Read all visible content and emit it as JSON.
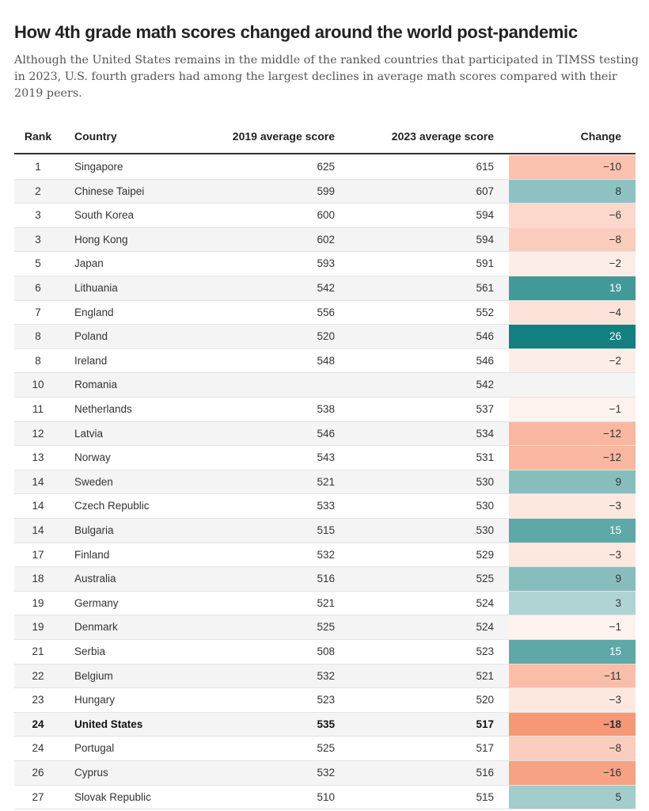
{
  "title": "How 4th grade math scores changed around the world post-pandemic",
  "subtitle": "Although the United States remains in the middle of the ranked countries that participated in TIMSS testing in 2023, U.S. fourth graders had among the largest declines in average math scores compared with their 2019 peers.",
  "colors": {
    "positive": "#137f7e",
    "negative": "#f4855e",
    "neutral": "#ffffff"
  },
  "chart_data": {
    "type": "table",
    "columns": [
      "Rank",
      "Country",
      "2019 average score",
      "2023 average score",
      "Change"
    ],
    "highlight_row": "United States",
    "rows": [
      {
        "rank": "1",
        "country": "Singapore",
        "score_2019": "625",
        "score_2023": "615",
        "change": "−10"
      },
      {
        "rank": "2",
        "country": "Chinese Taipei",
        "score_2019": "599",
        "score_2023": "607",
        "change": "8"
      },
      {
        "rank": "3",
        "country": "South Korea",
        "score_2019": "600",
        "score_2023": "594",
        "change": "−6"
      },
      {
        "rank": "3",
        "country": "Hong Kong",
        "score_2019": "602",
        "score_2023": "594",
        "change": "−8"
      },
      {
        "rank": "5",
        "country": "Japan",
        "score_2019": "593",
        "score_2023": "591",
        "change": "−2"
      },
      {
        "rank": "6",
        "country": "Lithuania",
        "score_2019": "542",
        "score_2023": "561",
        "change": "19"
      },
      {
        "rank": "7",
        "country": "England",
        "score_2019": "556",
        "score_2023": "552",
        "change": "−4"
      },
      {
        "rank": "8",
        "country": "Poland",
        "score_2019": "520",
        "score_2023": "546",
        "change": "26"
      },
      {
        "rank": "8",
        "country": "Ireland",
        "score_2019": "548",
        "score_2023": "546",
        "change": "−2"
      },
      {
        "rank": "10",
        "country": "Romania",
        "score_2019": "",
        "score_2023": "542",
        "change": ""
      },
      {
        "rank": "11",
        "country": "Netherlands",
        "score_2019": "538",
        "score_2023": "537",
        "change": "−1"
      },
      {
        "rank": "12",
        "country": "Latvia",
        "score_2019": "546",
        "score_2023": "534",
        "change": "−12"
      },
      {
        "rank": "13",
        "country": "Norway",
        "score_2019": "543",
        "score_2023": "531",
        "change": "−12"
      },
      {
        "rank": "14",
        "country": "Sweden",
        "score_2019": "521",
        "score_2023": "530",
        "change": "9"
      },
      {
        "rank": "14",
        "country": "Czech Republic",
        "score_2019": "533",
        "score_2023": "530",
        "change": "−3"
      },
      {
        "rank": "14",
        "country": "Bulgaria",
        "score_2019": "515",
        "score_2023": "530",
        "change": "15"
      },
      {
        "rank": "17",
        "country": "Finland",
        "score_2019": "532",
        "score_2023": "529",
        "change": "−3"
      },
      {
        "rank": "18",
        "country": "Australia",
        "score_2019": "516",
        "score_2023": "525",
        "change": "9"
      },
      {
        "rank": "19",
        "country": "Germany",
        "score_2019": "521",
        "score_2023": "524",
        "change": "3"
      },
      {
        "rank": "19",
        "country": "Denmark",
        "score_2019": "525",
        "score_2023": "524",
        "change": "−1"
      },
      {
        "rank": "21",
        "country": "Serbia",
        "score_2019": "508",
        "score_2023": "523",
        "change": "15"
      },
      {
        "rank": "22",
        "country": "Belgium",
        "score_2019": "532",
        "score_2023": "521",
        "change": "−11"
      },
      {
        "rank": "23",
        "country": "Hungary",
        "score_2019": "523",
        "score_2023": "520",
        "change": "−3"
      },
      {
        "rank": "24",
        "country": "United States",
        "score_2019": "535",
        "score_2023": "517",
        "change": "−18"
      },
      {
        "rank": "24",
        "country": "Portugal",
        "score_2019": "525",
        "score_2023": "517",
        "change": "−8"
      },
      {
        "rank": "26",
        "country": "Cyprus",
        "score_2019": "532",
        "score_2023": "516",
        "change": "−16"
      },
      {
        "rank": "27",
        "country": "Slovak Republic",
        "score_2019": "510",
        "score_2023": "515",
        "change": "5"
      }
    ]
  }
}
